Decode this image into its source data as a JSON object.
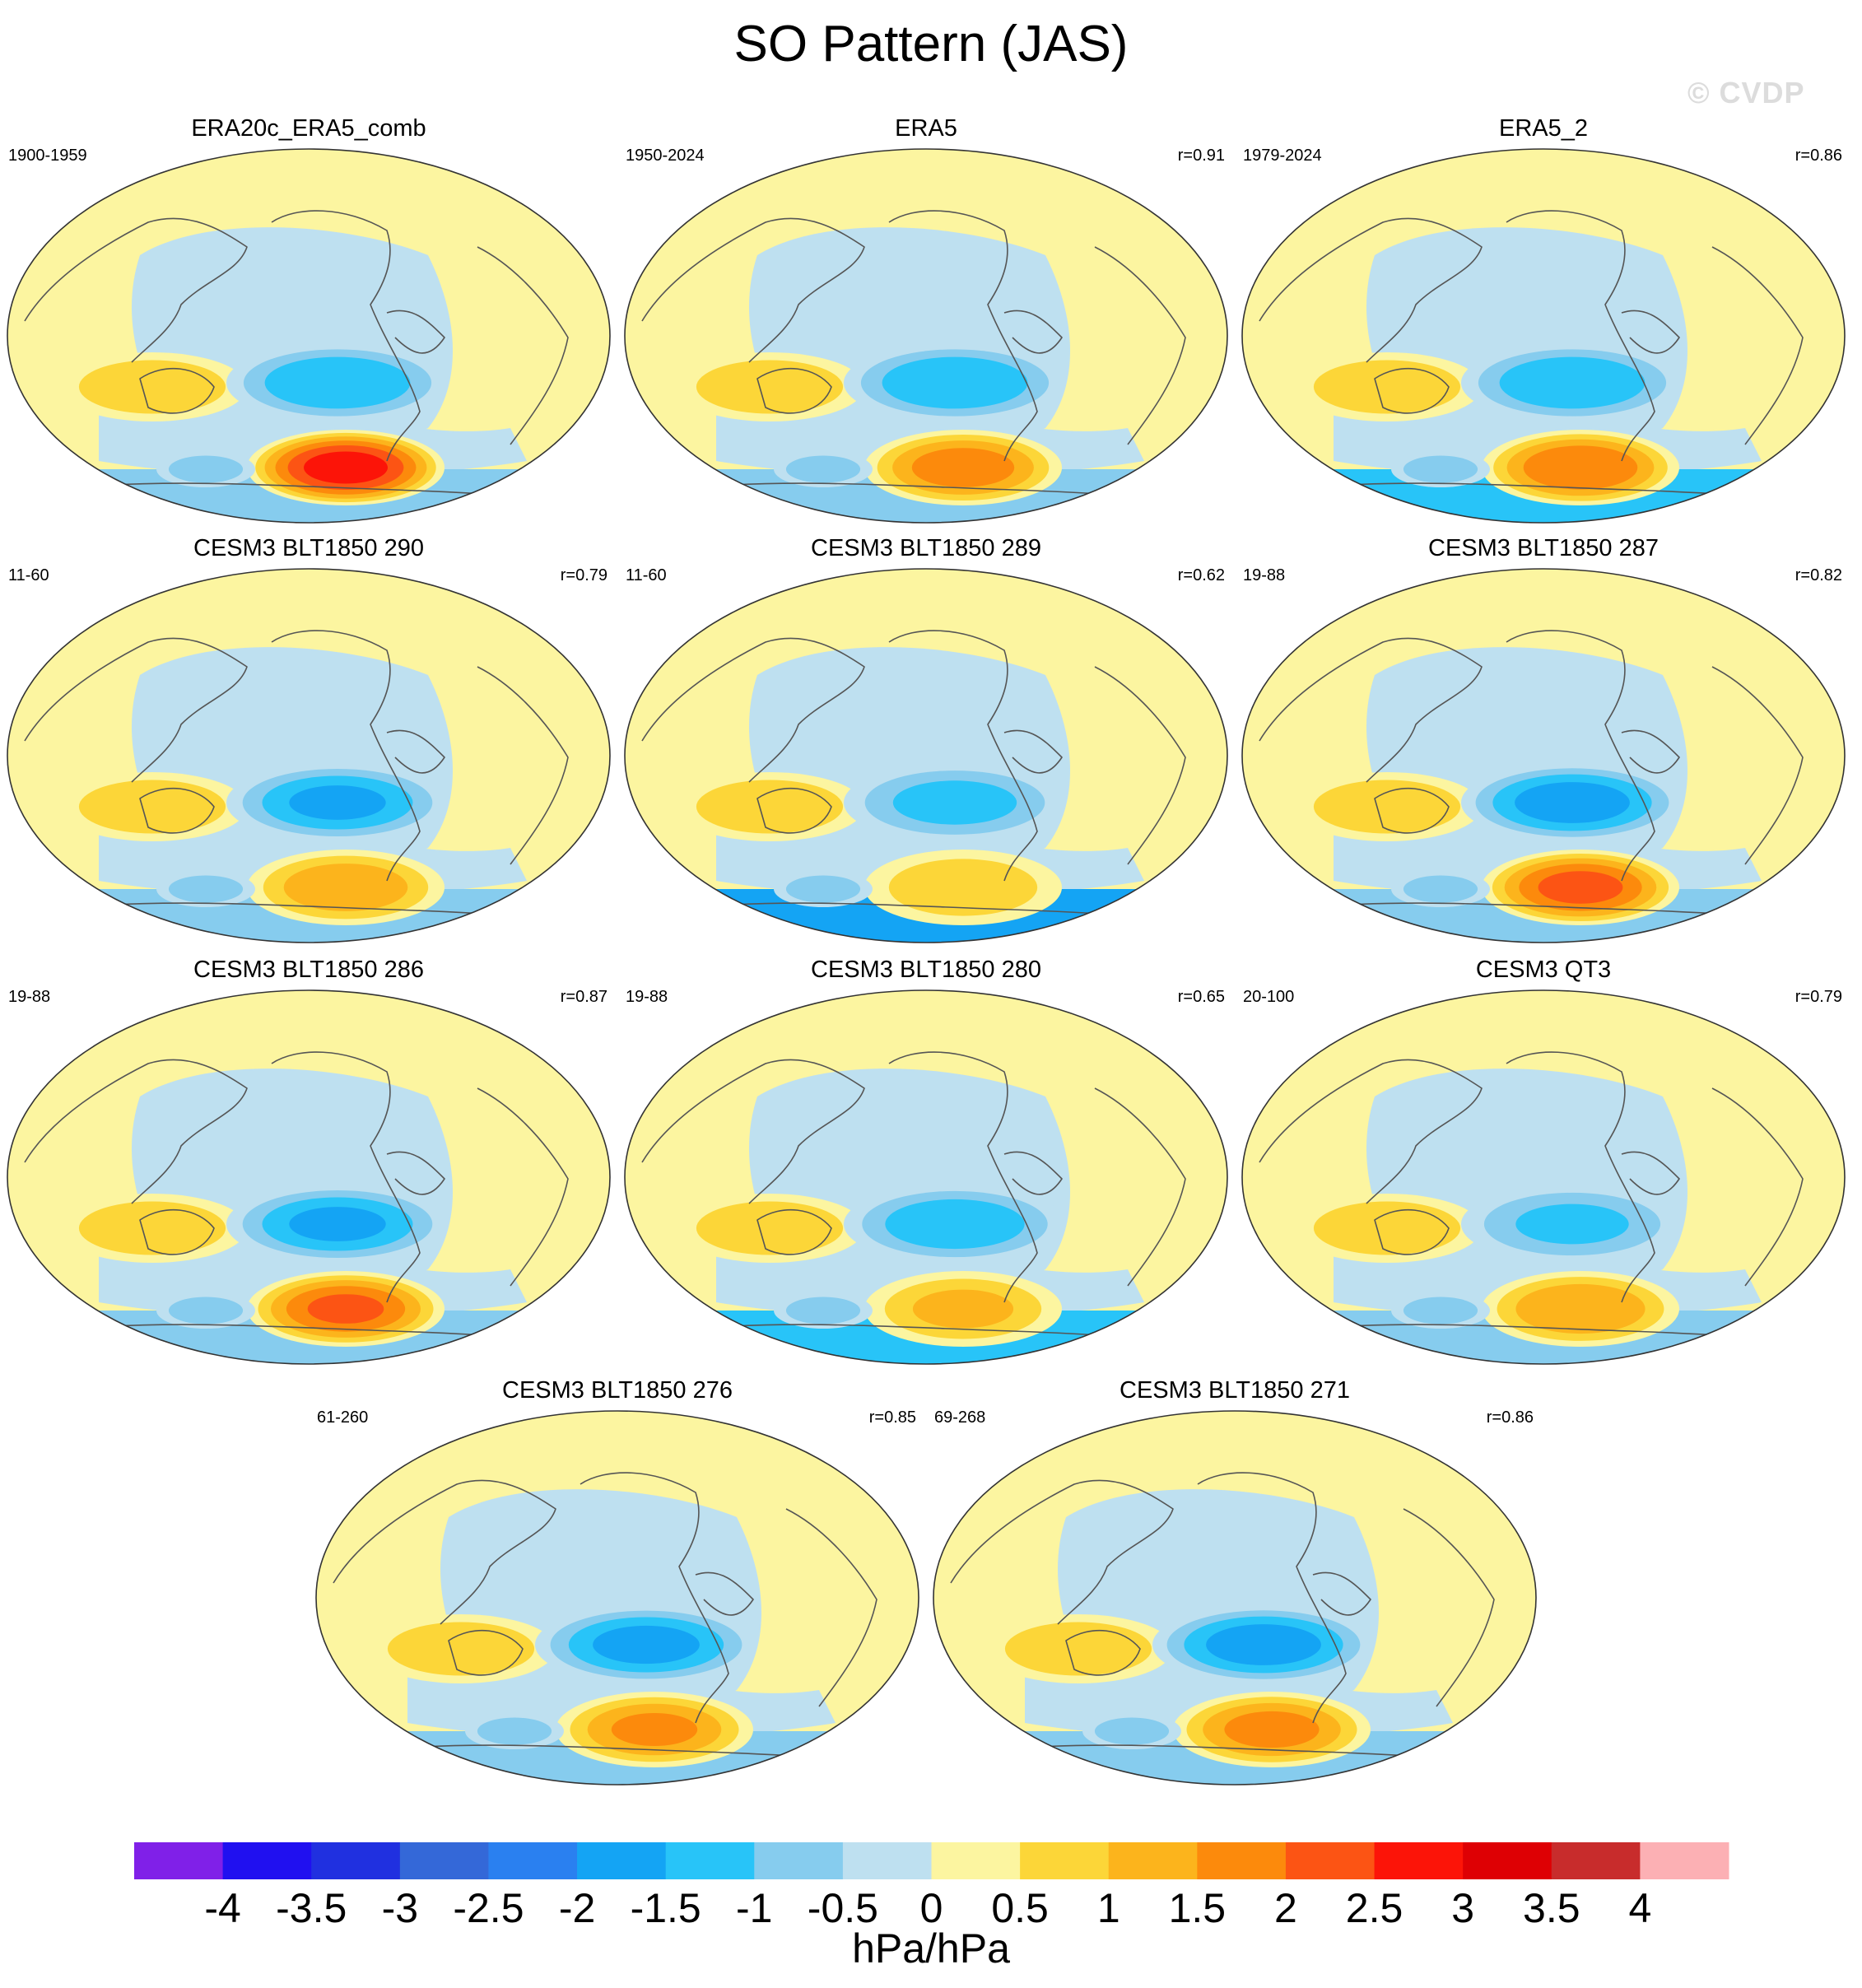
{
  "title": "SO Pattern (JAS)",
  "watermark": "© CVDP",
  "panels": [
    {
      "title": "ERA20c_ERA5_comb",
      "years": "1900-1959",
      "r": ""
    },
    {
      "title": "ERA5",
      "years": "1950-2024",
      "r": "r=0.91"
    },
    {
      "title": "ERA5_2",
      "years": "1979-2024",
      "r": "r=0.86"
    },
    {
      "title": "CESM3 BLT1850 290",
      "years": "11-60",
      "r": "r=0.79"
    },
    {
      "title": "CESM3 BLT1850 289",
      "years": "11-60",
      "r": "r=0.62"
    },
    {
      "title": "CESM3 BLT1850 287",
      "years": "19-88",
      "r": "r=0.82"
    },
    {
      "title": "CESM3 BLT1850 286",
      "years": "19-88",
      "r": "r=0.87"
    },
    {
      "title": "CESM3 BLT1850 280",
      "years": "19-88",
      "r": "r=0.65"
    },
    {
      "title": "CESM3 QT3",
      "years": "20-100",
      "r": "r=0.79"
    },
    {
      "title": "CESM3 BLT1850 276",
      "years": "61-260",
      "r": "r=0.85"
    },
    {
      "title": "CESM3 BLT1850 271",
      "years": "69-268",
      "r": "r=0.86"
    }
  ],
  "anomalies": [
    {
      "low": -1.5,
      "high": 2.8,
      "ant": -0.8
    },
    {
      "low": -1.5,
      "high": 1.8,
      "ant": -0.7
    },
    {
      "low": -1.5,
      "high": 2.0,
      "ant": -1.2
    },
    {
      "low": -1.6,
      "high": 1.4,
      "ant": -0.7
    },
    {
      "low": -1.2,
      "high": 0.9,
      "ant": -1.8
    },
    {
      "low": -1.8,
      "high": 2.2,
      "ant": -0.8
    },
    {
      "low": -1.6,
      "high": 2.1,
      "ant": -0.8
    },
    {
      "low": -1.4,
      "high": 1.1,
      "ant": -1.3
    },
    {
      "low": -1.1,
      "high": 1.5,
      "ant": -1.0
    },
    {
      "low": -1.7,
      "high": 1.6,
      "ant": -0.8
    },
    {
      "low": -1.8,
      "high": 1.7,
      "ant": -1.0
    }
  ],
  "colorbar": {
    "labels": [
      "-4",
      "-3.5",
      "-3",
      "-2.5",
      "-2",
      "-1.5",
      "-1",
      "-0.5",
      "0",
      "0.5",
      "1",
      "1.5",
      "2",
      "2.5",
      "3",
      "3.5",
      "4"
    ],
    "colors": [
      "#8020e8",
      "#2010f0",
      "#2030e0",
      "#3468d8",
      "#2a80f0",
      "#14a4f4",
      "#28c4f8",
      "#86ccee",
      "#bee0f0",
      "#fcf5a0",
      "#fcd638",
      "#fcb41c",
      "#fc8a0c",
      "#fc5414",
      "#fc1408",
      "#de0004",
      "#c82c2c",
      "#fcb0b4"
    ],
    "units": "hPa/hPa"
  }
}
